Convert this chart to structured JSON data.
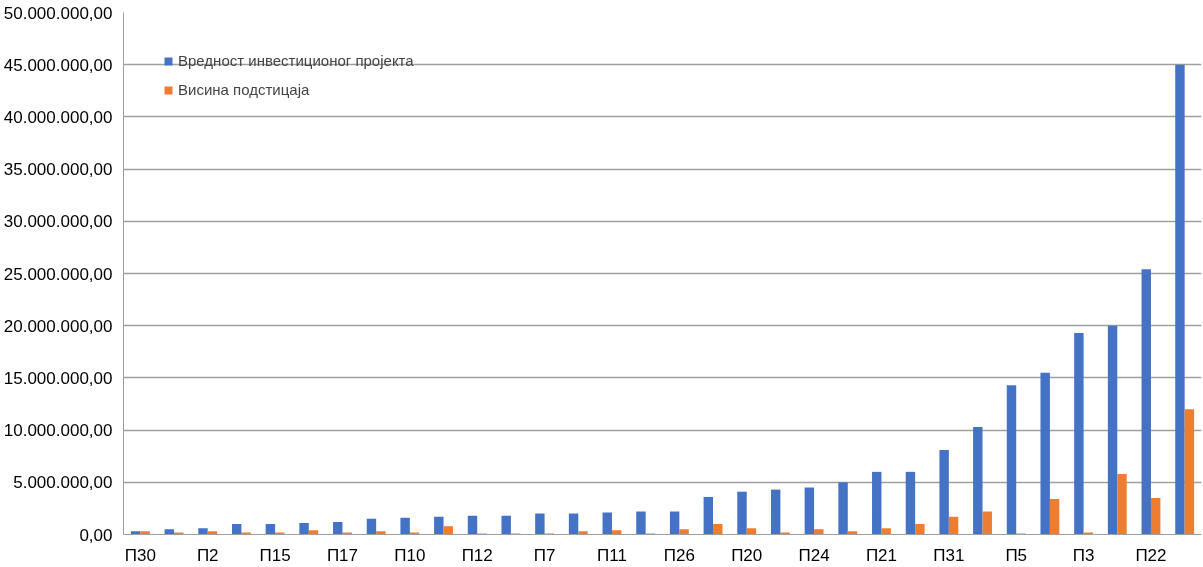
{
  "chart_data": {
    "type": "bar",
    "categories": [
      "П30",
      null,
      "П2",
      null,
      "П15",
      null,
      "П17",
      null,
      "П10",
      null,
      "П12",
      null,
      "П7",
      null,
      "П11",
      null,
      "П26",
      null,
      "П20",
      null,
      "П24",
      null,
      "П21",
      null,
      "П31",
      null,
      "П5",
      null,
      "П3",
      null,
      "П22",
      null
    ],
    "series": [
      {
        "name": "Вредност инвестиционог пројекта",
        "color": "#4472c4",
        "values": [
          300000,
          500000,
          600000,
          1000000,
          1000000,
          1100000,
          1200000,
          1500000,
          1600000,
          1700000,
          1800000,
          1800000,
          2000000,
          2000000,
          2100000,
          2200000,
          2200000,
          3600000,
          4100000,
          4300000,
          4500000,
          5000000,
          6000000,
          6000000,
          8100000,
          10300000,
          14300000,
          15500000,
          19300000,
          20000000,
          25400000,
          45000000
        ]
      },
      {
        "name": "Висина подстицаја",
        "color": "#ed7d31",
        "values": [
          300000,
          200000,
          300000,
          200000,
          200000,
          400000,
          200000,
          300000,
          200000,
          800000,
          100000,
          100000,
          100000,
          300000,
          400000,
          100000,
          500000,
          1000000,
          600000,
          200000,
          500000,
          300000,
          600000,
          1000000,
          1700000,
          2200000,
          100000,
          3400000,
          200000,
          5800000,
          3500000,
          12000000
        ]
      }
    ],
    "ylim": [
      0,
      50000000
    ],
    "yticks": [
      {
        "value": 0,
        "label": "0,00"
      },
      {
        "value": 5000000,
        "label": "5.000.000,00"
      },
      {
        "value": 10000000,
        "label": "10.000.000,00"
      },
      {
        "value": 15000000,
        "label": "15.000.000,00"
      },
      {
        "value": 20000000,
        "label": "20.000.000,00"
      },
      {
        "value": 25000000,
        "label": "25.000.000,00"
      },
      {
        "value": 30000000,
        "label": "30.000.000,00"
      },
      {
        "value": 35000000,
        "label": "35.000.000,00"
      },
      {
        "value": 40000000,
        "label": "40.000.000,00"
      },
      {
        "value": 45000000,
        "label": "45.000.000,00"
      },
      {
        "value": 50000000,
        "label": "50.000.000,00"
      }
    ],
    "grid": "y",
    "legend": "top left"
  }
}
